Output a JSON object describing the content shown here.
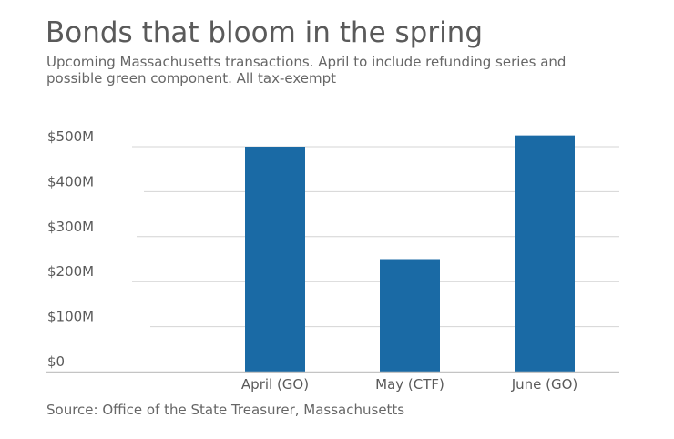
{
  "title": "Bonds that bloom in the spring",
  "subtitle": "Upcoming Massachusetts transactions. April to include refunding series and possible green component. All tax-exempt",
  "source": "Source: Office of the State Treasurer, Massachusetts",
  "colors": {
    "bar": "#1a6aa5",
    "grid": "#d4d4d4",
    "axis": "#c4c4c4",
    "tick_text": "#5a5a5a"
  },
  "chart_data": {
    "type": "bar",
    "title": "Bonds that bloom in the spring",
    "xlabel": "",
    "ylabel": "",
    "categories": [
      "April (GO)",
      "May (CTF)",
      "June (GO)"
    ],
    "values": [
      500,
      250,
      525
    ],
    "unit": "millions of dollars",
    "ylim": [
      0,
      500
    ],
    "y_ticks": [
      0,
      100,
      200,
      300,
      400,
      500
    ],
    "y_tick_labels": [
      "$0",
      "$100M",
      "$200M",
      "$300M",
      "$400M",
      "$500M"
    ],
    "grid": true,
    "legend": "none"
  }
}
